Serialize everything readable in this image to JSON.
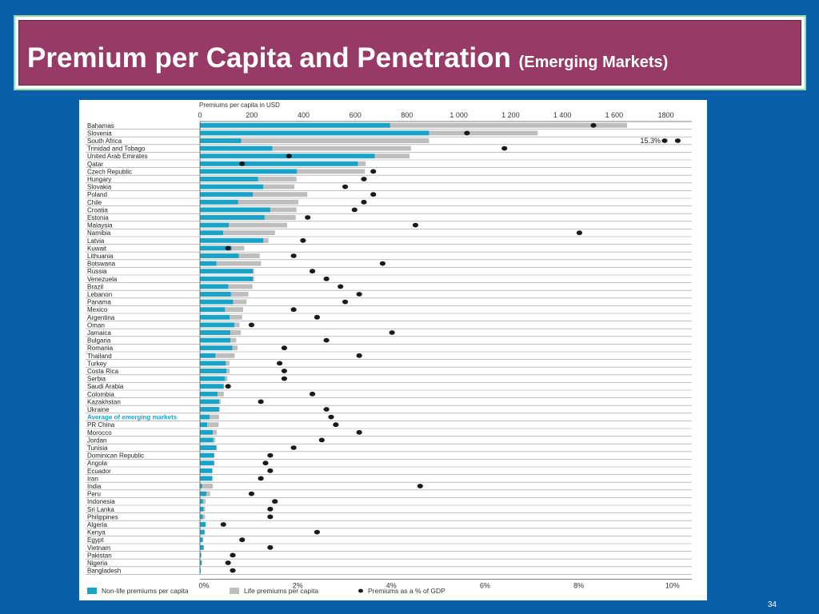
{
  "slide": {
    "title": "Premium per Capita and Penetration",
    "subtitle": "(Emerging Markets)",
    "page_number": "34"
  },
  "colors": {
    "background": "#0b5ea8",
    "title_fill": "#983a66",
    "title_border": "#9bd9a8",
    "non_life": "#1aa3c8",
    "life": "#bebebe",
    "gdp_dot": "#1a1a1a",
    "highlight_text": "#1aa3c8"
  },
  "chart_data": {
    "type": "bar",
    "orientation": "horizontal",
    "stacked": true,
    "title": "Premiums per capita in USD",
    "top_axis": {
      "ticks": [
        "0",
        "200",
        "400",
        "600",
        "800",
        "1 000",
        "1 200",
        "1 400",
        "1 600",
        "1800"
      ],
      "range": [
        0,
        1900
      ]
    },
    "bottom_axis": {
      "ticks": [
        "0%",
        "2%",
        "4%",
        "6%",
        "8%",
        "10%"
      ],
      "range": [
        0,
        10.5
      ]
    },
    "legend": [
      {
        "key": "non_life",
        "label": "Non-life premiums per capita"
      },
      {
        "key": "life",
        "label": "Life premiums per capita"
      },
      {
        "key": "gdp",
        "label": "Premiums as a % of GDP"
      }
    ],
    "highlight_category": "Average of emerging markets",
    "annotations": [
      {
        "category": "South Africa",
        "text": "15.3%"
      }
    ],
    "grid": true,
    "categories": [
      "Bahamas",
      "Slovenia",
      "South Africa",
      "Trinidad and Tobago",
      "United Arab Emirates",
      "Qatar",
      "Czech Republic",
      "Hungary",
      "Slovakia",
      "Poland",
      "Chile",
      "Croatia",
      "Estonia",
      "Malaysia",
      "Namibia",
      "Latvia",
      "Kuwait",
      "Lithuania",
      "Botswana",
      "Russia",
      "Venezuela",
      "Brazil",
      "Lebanon",
      "Panama",
      "Mexico",
      "Argentina",
      "Oman",
      "Jamaica",
      "Bulgaria",
      "Romania",
      "Thailand",
      "Turkey",
      "Costa Rica",
      "Serbia",
      "Saudi Arabia",
      "Colombia",
      "Kazakhstan",
      "Ukraine",
      "Average of emerging markets",
      "PR China",
      "Morocco",
      "Jordan",
      "Tunisia",
      "Dominican Republic",
      "Angola",
      "Ecuador",
      "Iran",
      "India",
      "Peru",
      "Indonesia",
      "Sri Lanka",
      "Philippines",
      "Algeria",
      "Kenya",
      "Egypt",
      "Vietnam",
      "Pakistan",
      "Nigeria",
      "Bangladesh"
    ],
    "series": [
      {
        "name": "Non-life premiums per capita",
        "values": [
          735,
          885,
          160,
          280,
          675,
          610,
          375,
          225,
          245,
          205,
          148,
          272,
          250,
          112,
          90,
          245,
          122,
          150,
          64,
          205,
          205,
          110,
          120,
          128,
          97,
          115,
          133,
          118,
          118,
          125,
          60,
          100,
          102,
          97,
          92,
          68,
          75,
          75,
          38,
          28,
          50,
          52,
          63,
          55,
          55,
          48,
          48,
          8,
          25,
          12,
          14,
          11,
          22,
          18,
          11,
          14,
          5,
          7,
          3
        ]
      },
      {
        "name": "Life premiums per capita",
        "values": [
          915,
          420,
          725,
          535,
          135,
          30,
          262,
          148,
          120,
          210,
          232,
          101,
          120,
          225,
          200,
          20,
          49,
          81,
          172,
          4,
          4,
          93,
          67,
          52,
          70,
          48,
          20,
          40,
          22,
          20,
          74,
          14,
          12,
          9,
          0,
          24,
          5,
          0,
          36,
          44,
          15,
          7,
          3,
          0,
          0,
          0,
          0,
          42,
          14,
          10,
          6,
          9,
          0,
          2,
          1,
          2,
          0,
          0,
          0
        ]
      },
      {
        "name": "Premiums as a % of GDP",
        "values": [
          8.4,
          5.7,
          10.2,
          6.5,
          1.9,
          0.9,
          3.7,
          3.5,
          3.1,
          3.7,
          3.5,
          3.3,
          2.3,
          4.6,
          8.1,
          2.2,
          0.6,
          2.0,
          3.9,
          2.4,
          2.7,
          3.0,
          3.4,
          3.1,
          2.0,
          2.5,
          1.1,
          4.1,
          2.7,
          1.8,
          3.4,
          1.7,
          1.8,
          1.8,
          0.6,
          2.4,
          1.3,
          2.7,
          2.8,
          2.9,
          3.4,
          2.6,
          2.0,
          1.5,
          1.4,
          1.5,
          1.3,
          4.7,
          1.1,
          1.6,
          1.5,
          1.5,
          0.5,
          2.5,
          0.9,
          1.5,
          0.7,
          0.6,
          0.7
        ]
      }
    ]
  }
}
